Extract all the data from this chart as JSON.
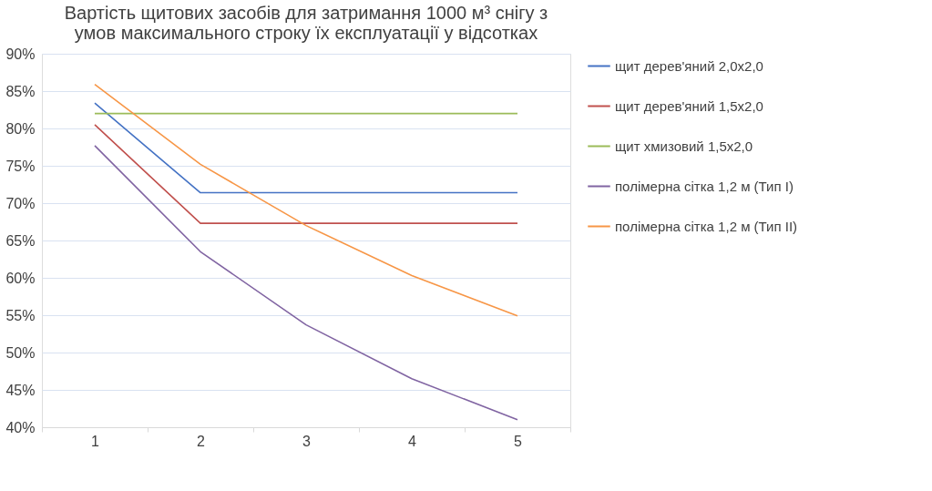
{
  "chart_data": {
    "type": "line",
    "title": "Вартість щитових засобів для затримання 1000 м³ снігу з\nумов максимального строку їх експлуатації у відсотках",
    "categories": [
      "1",
      "2",
      "3",
      "4",
      "5"
    ],
    "series": [
      {
        "name": "щит дерев'яний 2,0х2,0",
        "color": "#4472c4",
        "values": [
          83.4,
          71.4,
          71.4,
          71.4,
          71.4
        ]
      },
      {
        "name": "щит дерев'яний 1,5х2,0",
        "color": "#c0504d",
        "values": [
          80.5,
          67.3,
          67.3,
          67.3,
          67.3
        ]
      },
      {
        "name": "щит хмизовий 1,5х2,0",
        "color": "#9bbb59",
        "values": [
          82,
          82,
          82,
          82,
          82
        ]
      },
      {
        "name": "полімерна сітка 1,2 м (Тип I)",
        "color": "#8064a2",
        "values": [
          77.7,
          63.5,
          53.7,
          46.5,
          41.0
        ]
      },
      {
        "name": "полімерна сітка 1,2 м (Тип II)",
        "color": "#f79646",
        "values": [
          85.9,
          75.2,
          67.0,
          60.3,
          54.9
        ]
      }
    ],
    "ylim": [
      40,
      90
    ],
    "yticks": [
      {
        "value": 40,
        "label": "40%"
      },
      {
        "value": 45,
        "label": "45%"
      },
      {
        "value": 50,
        "label": "50%"
      },
      {
        "value": 55,
        "label": "55%"
      },
      {
        "value": 60,
        "label": "60%"
      },
      {
        "value": 65,
        "label": "65%"
      },
      {
        "value": 70,
        "label": "70%"
      },
      {
        "value": 75,
        "label": "75%"
      },
      {
        "value": 80,
        "label": "80%"
      },
      {
        "value": 85,
        "label": "85%"
      },
      {
        "value": 90,
        "label": "90%"
      }
    ],
    "grid": "y",
    "legend": "right",
    "marker": "none",
    "line_style": "solid"
  }
}
